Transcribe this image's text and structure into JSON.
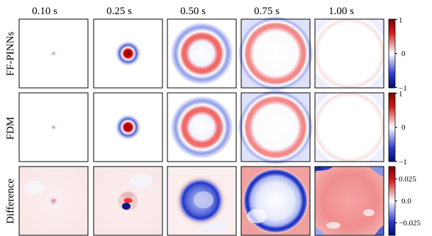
{
  "columns": [
    "0.10 s",
    "0.25 s",
    "0.50 s",
    "0.75 s",
    "1.00 s"
  ],
  "rows": [
    {
      "label": "FF-PINNs",
      "colorbar": {
        "max": "1",
        "mid": "0",
        "min": "−1"
      },
      "panels": [
        "small-blue-dot",
        "red-core-blue-halo",
        "red-ring",
        "wide-red-ring",
        "faint-edge-ring"
      ]
    },
    {
      "label": "FDM",
      "colorbar": {
        "max": "1",
        "mid": "0",
        "min": "−1"
      },
      "panels": [
        "small-blue-dot",
        "red-core-blue-halo",
        "red-ring",
        "wide-red-ring",
        "faint-edge-ring"
      ]
    },
    {
      "label": "Difference",
      "colorbar": {
        "max": "0.025",
        "mid": "0.0",
        "min": "−0.025"
      },
      "panels": [
        "tiny-speck",
        "dipole-center",
        "blue-disk",
        "blue-ring-red-background",
        "red-field-blue-corners"
      ]
    }
  ],
  "colors": {
    "positive": "#b2182b",
    "negative": "#2166ac",
    "neutral": "#ffffff"
  }
}
